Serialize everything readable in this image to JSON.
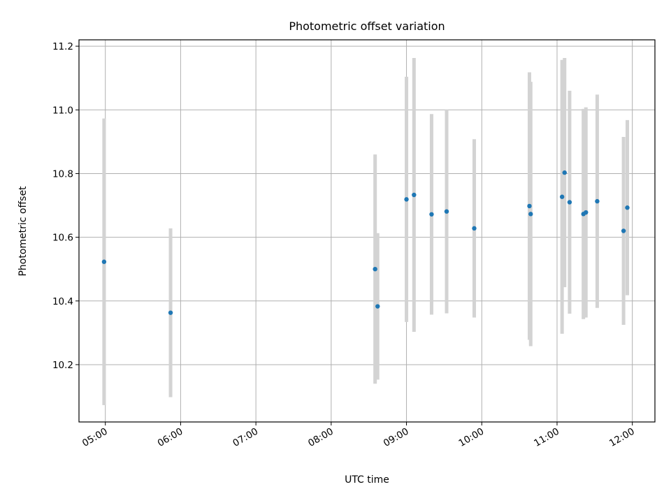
{
  "chart_data": {
    "type": "scatter",
    "title": "Photometric offset variation",
    "xlabel": "UTC time",
    "ylabel": "Photometric offset",
    "xlim": [
      "04:39",
      "12:18"
    ],
    "ylim": [
      10.02,
      11.22
    ],
    "x_ticks": [
      "05:00",
      "06:00",
      "07:00",
      "08:00",
      "09:00",
      "10:00",
      "11:00",
      "12:00"
    ],
    "y_ticks": [
      "10.2",
      "10.4",
      "10.6",
      "10.8",
      "11.0",
      "11.2"
    ],
    "y_tick_values": [
      10.2,
      10.4,
      10.6,
      10.8,
      11.0,
      11.2
    ],
    "grid": true,
    "colors": {
      "points": "#1f77b4",
      "errorbars": "#d3d3d3",
      "grid": "#b0b0b0"
    },
    "points": [
      {
        "t": "04:59",
        "y": 10.523,
        "err": 0.45
      },
      {
        "t": "05:52",
        "y": 10.363,
        "err": 0.265
      },
      {
        "t": "08:35",
        "y": 10.5,
        "err": 0.36
      },
      {
        "t": "08:37",
        "y": 10.383,
        "err": 0.23
      },
      {
        "t": "09:00",
        "y": 10.719,
        "err": 0.385
      },
      {
        "t": "09:06",
        "y": 10.733,
        "err": 0.43
      },
      {
        "t": "09:20",
        "y": 10.672,
        "err": 0.315
      },
      {
        "t": "09:32",
        "y": 10.681,
        "err": 0.32
      },
      {
        "t": "09:54",
        "y": 10.628,
        "err": 0.28
      },
      {
        "t": "10:38",
        "y": 10.698,
        "err": 0.42
      },
      {
        "t": "10:39",
        "y": 10.673,
        "err": 0.415
      },
      {
        "t": "11:04",
        "y": 10.727,
        "err": 0.43
      },
      {
        "t": "11:06",
        "y": 10.803,
        "err": 0.36
      },
      {
        "t": "11:10",
        "y": 10.71,
        "err": 0.35
      },
      {
        "t": "11:21",
        "y": 10.673,
        "err": 0.33
      },
      {
        "t": "11:23",
        "y": 10.678,
        "err": 0.33
      },
      {
        "t": "11:32",
        "y": 10.713,
        "err": 0.335
      },
      {
        "t": "11:53",
        "y": 10.62,
        "err": 0.295
      },
      {
        "t": "11:56",
        "y": 10.693,
        "err": 0.275
      }
    ]
  }
}
